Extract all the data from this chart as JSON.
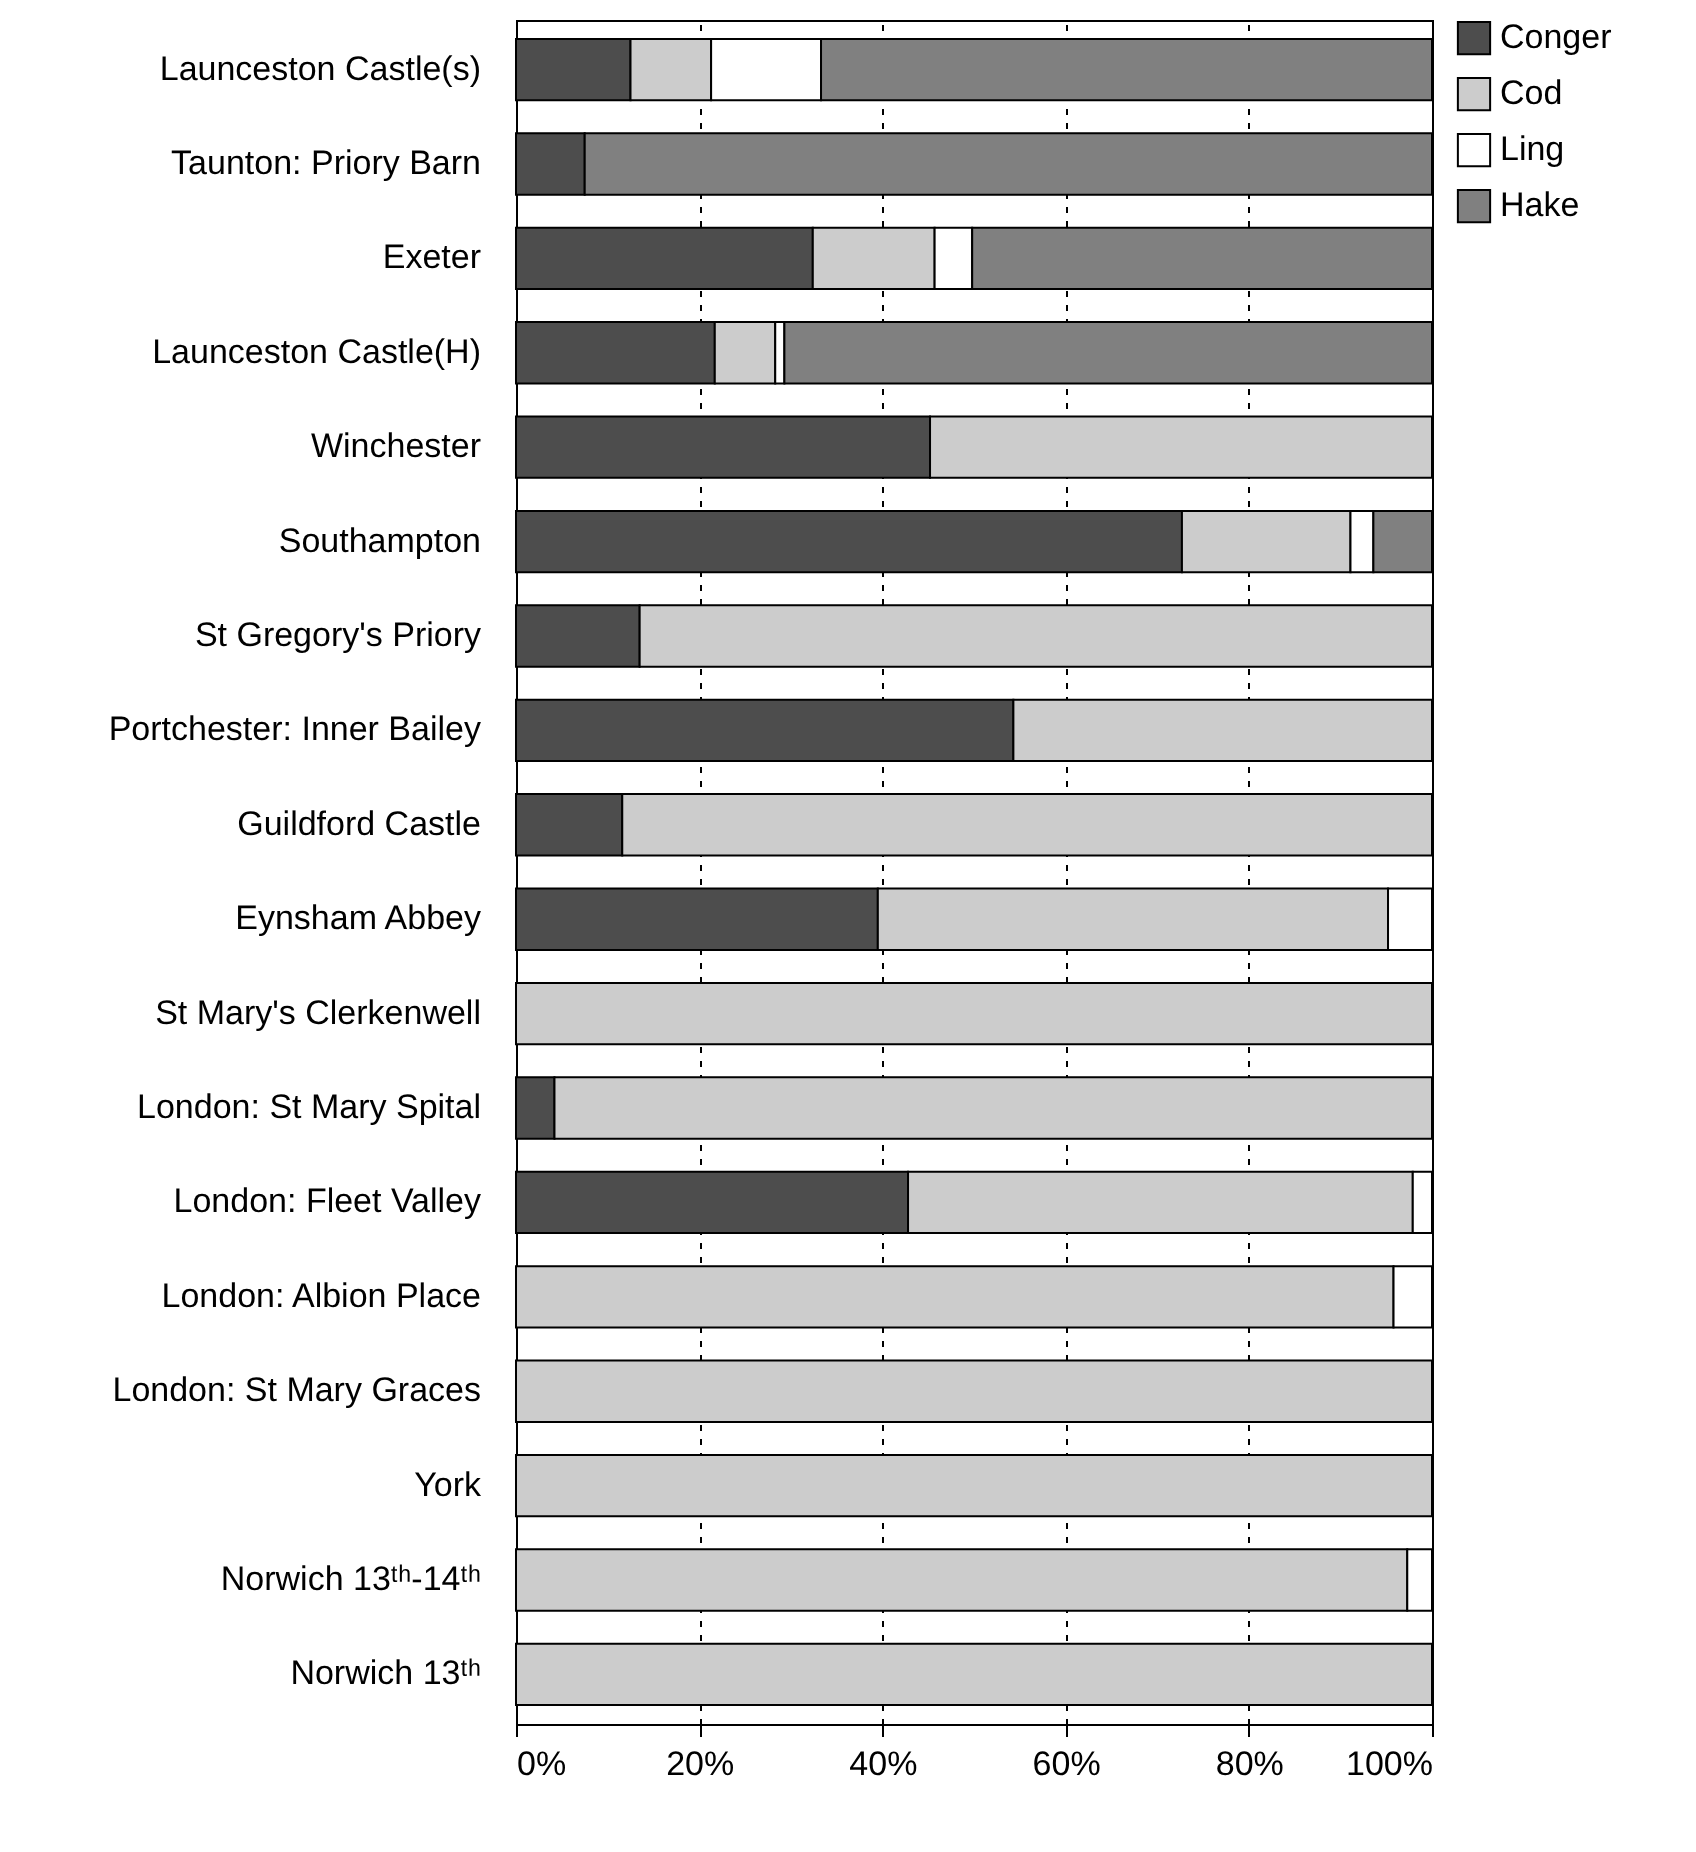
{
  "chart_data": {
    "type": "bar",
    "orientation": "horizontal",
    "stacked": true,
    "grid": "x",
    "legend": "top right",
    "categories": [
      "Launceston Castle(s)",
      "Taunton: Priory Barn",
      "Exeter",
      "Launceston Castle(H)",
      "Winchester",
      "Southampton",
      "St Gregory's Priory",
      "Portchester: Inner Bailey",
      "Guildford Castle",
      "Eynsham Abbey",
      "St Mary's Clerkenwell",
      "London: St Mary Spital",
      "London: Fleet Valley",
      "London: Albion Place",
      "London: St Mary Graces",
      "York",
      "Norwich 13ᵗʰ-14ᵗʰ",
      "Norwich 13ᵗʰ"
    ],
    "series": [
      {
        "name": "Conger",
        "color": "#4d4d4d",
        "values": [
          12.5,
          7.5,
          32.4,
          21.7,
          45.2,
          72.7,
          13.5,
          54.3,
          11.6,
          39.5,
          null,
          4.2,
          42.8,
          null,
          null,
          null,
          null,
          null
        ]
      },
      {
        "name": "Cod",
        "color": "#cccccc",
        "values": [
          8.8,
          null,
          13.3,
          6.6,
          54.8,
          18.4,
          86.5,
          45.7,
          88.4,
          55.7,
          100,
          95.8,
          55.1,
          95.8,
          100,
          100,
          97.3,
          100
        ]
      },
      {
        "name": "Ling",
        "color": "#ffffff",
        "values": [
          12,
          null,
          4.1,
          1,
          null,
          2.5,
          null,
          null,
          null,
          4.8,
          null,
          null,
          2.1,
          4.2,
          null,
          null,
          2.7,
          null
        ]
      },
      {
        "name": "Hake",
        "color": "#808080",
        "values": [
          66.7,
          92.5,
          50.2,
          70.7,
          null,
          6.4,
          null,
          null,
          null,
          null,
          null,
          null,
          null,
          null,
          null,
          null,
          null,
          null
        ]
      }
    ],
    "xlim": [
      0,
      100
    ],
    "xticks": [
      {
        "value": 0,
        "label": "0%"
      },
      {
        "value": 20,
        "label": "20%"
      },
      {
        "value": 40,
        "label": "40%"
      },
      {
        "value": 60,
        "label": "60%"
      },
      {
        "value": 80,
        "label": "80%"
      },
      {
        "value": 100,
        "label": "100%"
      }
    ]
  }
}
